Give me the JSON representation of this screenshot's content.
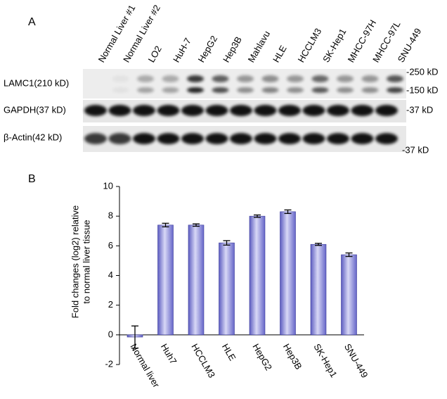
{
  "panel_a": {
    "label": "A",
    "lanes": [
      "Normal Liver #1",
      "Normal Liver #2",
      "LO2",
      "HuH-7",
      "HepG2",
      "Hep3B",
      "Mahlavu",
      "HLE",
      "HCCLM3",
      "SK-Hep1",
      "MHCC-97H",
      "MHCC-97L",
      "SNU-449"
    ],
    "rows": [
      "LAMC1(210 kD)",
      "GAPDH(37 kD)",
      "β-Actin(42 kD)"
    ],
    "markers": [
      "-250 kD",
      "-150 kD",
      "-37 kD",
      "-37 kD"
    ]
  },
  "chart_data": {
    "type": "bar",
    "panel_label": "B",
    "ylabel": [
      "Fold changes (log2) relative",
      "to normal liver tissue"
    ],
    "categories": [
      "Normal liver",
      "Huh7",
      "HCCLM3",
      "HLE",
      "HepG2",
      "Hep3B",
      "SK-Hep1",
      "SNU-449"
    ],
    "values": [
      -0.15,
      7.4,
      7.4,
      6.2,
      8.0,
      8.3,
      6.1,
      5.4
    ],
    "errors": [
      0.75,
      0.12,
      0.08,
      0.15,
      0.08,
      0.12,
      0.07,
      0.12
    ],
    "color": "#8585d8",
    "ylim": [
      -2,
      10
    ],
    "yticks": [
      -2,
      0,
      2,
      4,
      6,
      8,
      10
    ]
  }
}
